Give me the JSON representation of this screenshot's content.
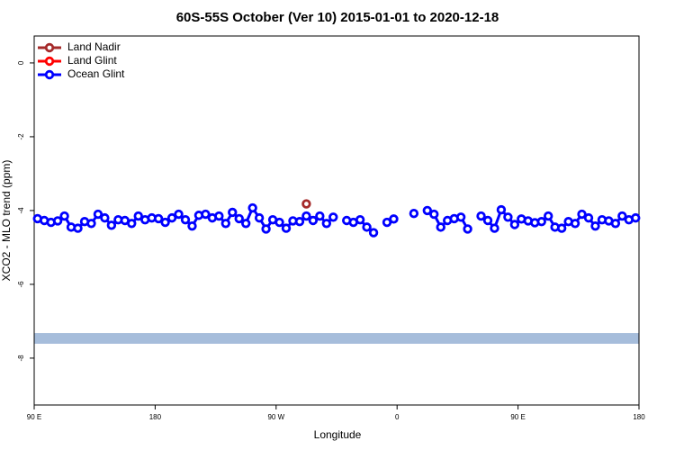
{
  "chart_data": {
    "type": "line",
    "title": "60S-55S October (Ver 10)   2015-01-01 to 2020-12-18",
    "xlabel": "Longitude",
    "ylabel": "XCO2 - MLO trend (ppm)",
    "xlim": [
      90,
      540
    ],
    "ylim": [
      -9.27,
      0.73
    ],
    "xticks": [
      {
        "value": 90,
        "label": "90 E"
      },
      180,
      {
        "value": 270,
        "label": "90 W"
      },
      {
        "value": 360,
        "label": "0"
      },
      {
        "value": 450,
        "label": "90 E"
      },
      {
        "value": 540,
        "label": "180"
      }
    ],
    "yticks": [
      0,
      -2,
      -4,
      -6,
      -8
    ],
    "legend": "top-left",
    "band": {
      "color": "#a6bddb",
      "ylim": [
        -7.61,
        -7.32
      ]
    },
    "series": [
      {
        "name": "Land Nadir",
        "color": "#a52a2a",
        "x": [
          292.5
        ],
        "values": [
          -3.82
        ]
      },
      {
        "name": "Land Glint",
        "color": "#ff0000",
        "x": [],
        "values": []
      },
      {
        "name": "Ocean Glint",
        "color": "#0000ff",
        "x": [
          92.5,
          97.5,
          102.5,
          107.5,
          112.5,
          117.5,
          122.5,
          127.5,
          132.5,
          137.5,
          142.5,
          147.5,
          152.5,
          157.5,
          162.5,
          167.5,
          172.5,
          177.5,
          182.5,
          187.5,
          192.5,
          197.5,
          202.5,
          207.5,
          212.5,
          217.5,
          222.5,
          227.5,
          232.5,
          237.5,
          242.5,
          247.5,
          252.5,
          257.5,
          262.5,
          267.5,
          272.5,
          277.5,
          282.5,
          287.5,
          292.5,
          297.5,
          302.5,
          307.5,
          312.5,
          317.5,
          322.5,
          327.5,
          332.5,
          337.5,
          342.5,
          347.5,
          352.5,
          357.5,
          362.5,
          367.5,
          372.5,
          377.5,
          382.5,
          387.5,
          392.5,
          397.5,
          402.5,
          407.5,
          412.5,
          417.5,
          422.5,
          427.5,
          432.5,
          437.5,
          442.5,
          447.5,
          452.5,
          457.5,
          462.5,
          467.5,
          472.5,
          477.5,
          482.5,
          487.5,
          492.5,
          497.5,
          502.5,
          507.5,
          512.5,
          517.5,
          522.5,
          527.5,
          532.5,
          537.5
        ],
        "values": [
          -4.22,
          -4.27,
          -4.32,
          -4.28,
          -4.15,
          -4.45,
          -4.48,
          -4.3,
          -4.35,
          -4.1,
          -4.2,
          -4.4,
          -4.25,
          -4.27,
          -4.35,
          -4.15,
          -4.25,
          -4.2,
          -4.22,
          -4.32,
          -4.2,
          -4.1,
          -4.25,
          -4.42,
          -4.13,
          -4.1,
          -4.2,
          -4.15,
          -4.35,
          -4.05,
          -4.22,
          -4.35,
          -3.93,
          -4.2,
          -4.5,
          -4.25,
          -4.32,
          -4.48,
          -4.28,
          -4.3,
          -4.15,
          -4.27,
          -4.15,
          -4.35,
          -4.18,
          null,
          -4.27,
          -4.32,
          -4.25,
          -4.45,
          -4.6,
          null,
          -4.32,
          -4.23,
          null,
          null,
          -4.08,
          null,
          -4.0,
          -4.1,
          -4.45,
          -4.27,
          -4.22,
          -4.18,
          -4.5,
          null,
          -4.15,
          -4.27,
          -4.48,
          -3.98,
          -4.18,
          -4.38,
          -4.23,
          -4.28,
          -4.33,
          -4.3,
          -4.15,
          -4.45,
          -4.48,
          -4.3,
          -4.35,
          -4.1,
          -4.2,
          -4.42,
          -4.25,
          -4.28,
          -4.35,
          -4.15,
          -4.25,
          -4.2
        ]
      }
    ]
  }
}
